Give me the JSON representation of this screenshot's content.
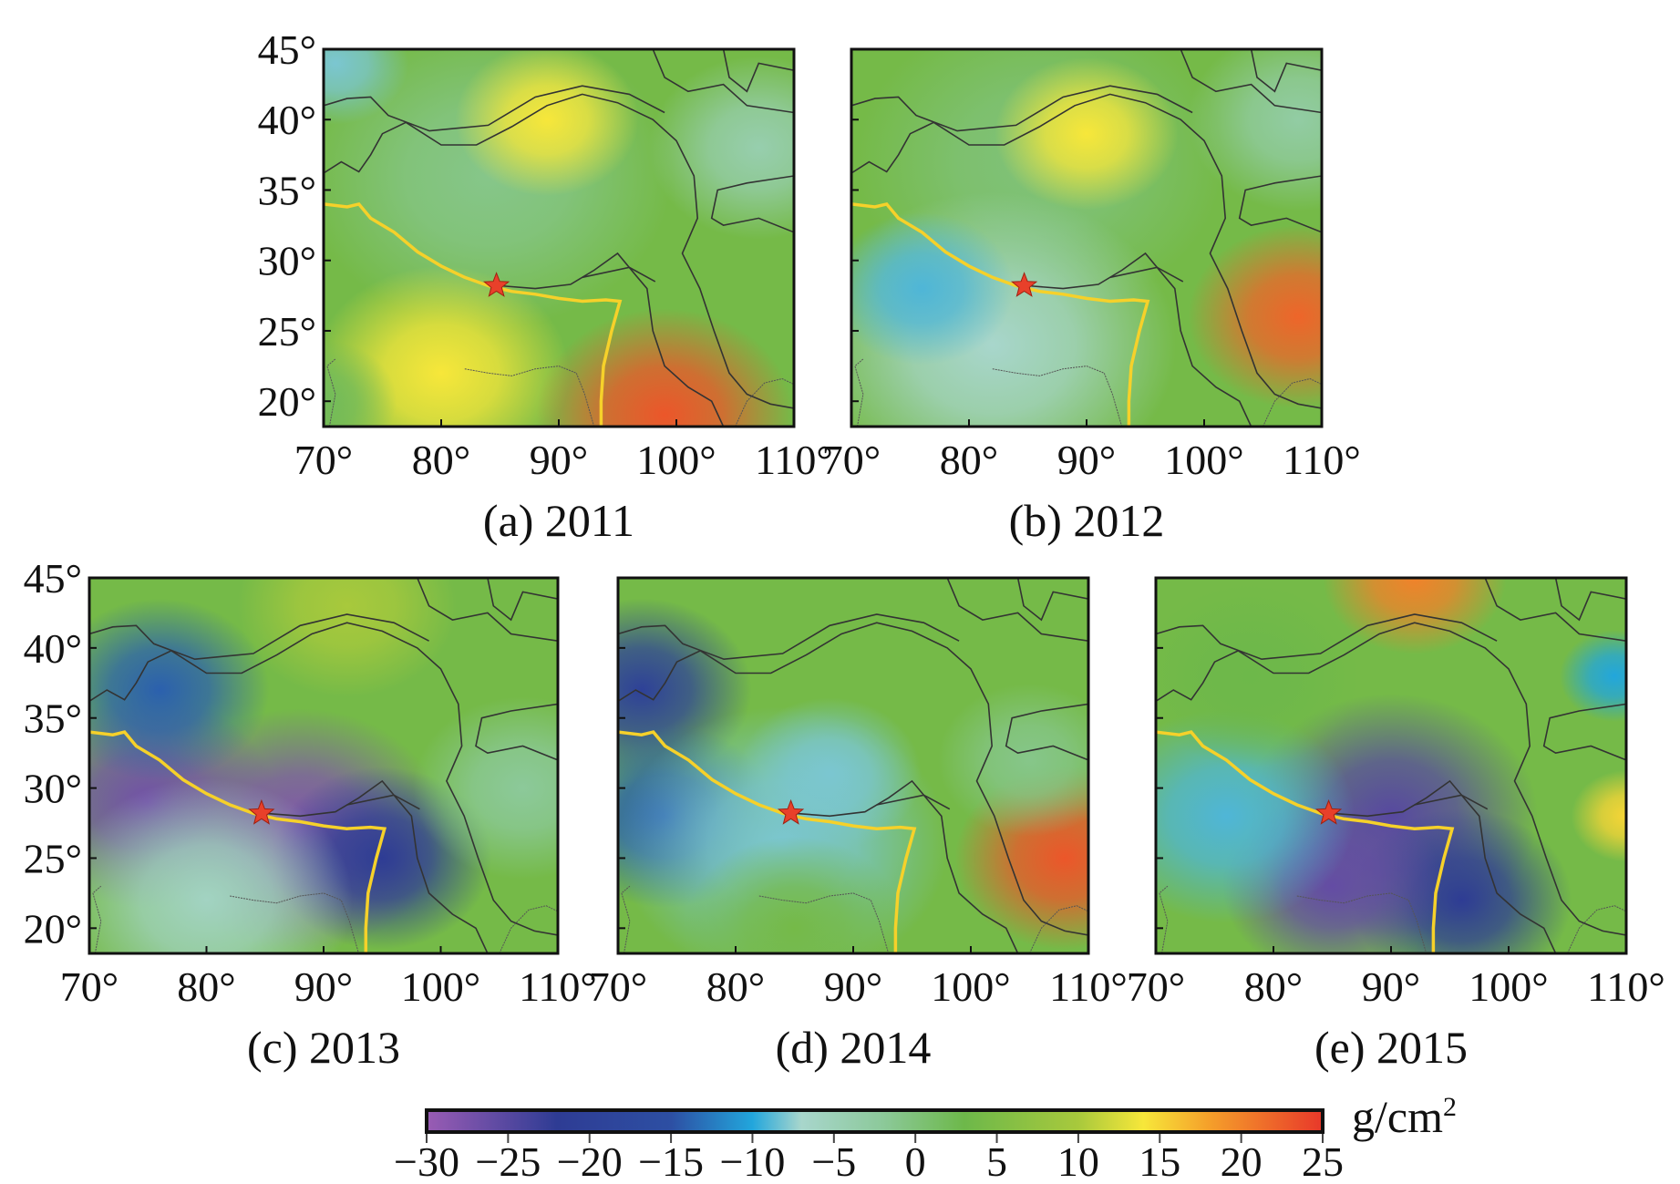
{
  "chart_data": {
    "type": "heatmap",
    "unit": "g/cm²",
    "unit_base": "g/cm",
    "unit_sup": "2",
    "lon_ticks": [
      "70°",
      "80°",
      "90°",
      "100°",
      "110°"
    ],
    "lon_values": [
      70,
      80,
      90,
      100,
      110
    ],
    "lat_ticks": [
      "45°",
      "40°",
      "35°",
      "30°",
      "25°",
      "20°"
    ],
    "lat_values": [
      45,
      40,
      35,
      30,
      25,
      20
    ],
    "lon_range": [
      70,
      110
    ],
    "lat_range": [
      18.2,
      45
    ],
    "colorbar": {
      "range": [
        -30,
        25
      ],
      "ticks": [
        "−30",
        "−25",
        "−20",
        "−15",
        "−10",
        "−5",
        "0",
        "5",
        "10",
        "15",
        "20",
        "25"
      ],
      "stops": [
        {
          "v": -30,
          "c": "#9a5cb4"
        },
        {
          "v": -22,
          "c": "#2e3c94"
        },
        {
          "v": -15,
          "c": "#2d4fa3"
        },
        {
          "v": -10,
          "c": "#22a6dc"
        },
        {
          "v": -7,
          "c": "#a8d6cc"
        },
        {
          "v": -2,
          "c": "#8cc99a"
        },
        {
          "v": 3,
          "c": "#6db84a"
        },
        {
          "v": 10,
          "c": "#a8c93c"
        },
        {
          "v": 14,
          "c": "#f7e73a"
        },
        {
          "v": 18,
          "c": "#f5a02a"
        },
        {
          "v": 25,
          "c": "#e8382a"
        }
      ]
    },
    "epicenter": {
      "lon": 84.7,
      "lat": 28.2,
      "color": "#e8402a"
    },
    "panels": [
      {
        "label": "(a) 2011",
        "base": 4,
        "anomalies": [
          {
            "lon": 84,
            "lat": 36,
            "v": -1,
            "r": 10
          },
          {
            "lon": 89,
            "lat": 40,
            "v": 14,
            "r": 5
          },
          {
            "lon": 80,
            "lat": 22,
            "v": 14,
            "r": 7
          },
          {
            "lon": 99,
            "lat": 19,
            "v": 23,
            "r": 7
          },
          {
            "lon": 71,
            "lat": 44,
            "v": -8,
            "r": 4
          },
          {
            "lon": 107,
            "lat": 38,
            "v": -4,
            "r": 6
          },
          {
            "lon": 70,
            "lat": 20,
            "v": 2,
            "r": 4
          }
        ]
      },
      {
        "label": "(b) 2012",
        "base": 4,
        "anomalies": [
          {
            "lon": 86,
            "lat": 37,
            "v": 0,
            "r": 10
          },
          {
            "lon": 90,
            "lat": 39,
            "v": 14,
            "r": 5
          },
          {
            "lon": 82,
            "lat": 24,
            "v": -7,
            "r": 10
          },
          {
            "lon": 76,
            "lat": 28,
            "v": -9,
            "r": 5
          },
          {
            "lon": 108,
            "lat": 26,
            "v": 22,
            "r": 6
          },
          {
            "lon": 108,
            "lat": 40,
            "v": -3,
            "r": 6
          }
        ]
      },
      {
        "label": "(c) 2013",
        "base": 4,
        "anomalies": [
          {
            "lon": 75,
            "lat": 29,
            "v": -27,
            "r": 7
          },
          {
            "lon": 88,
            "lat": 27,
            "v": -28,
            "r": 8
          },
          {
            "lon": 95,
            "lat": 25,
            "v": -22,
            "r": 6
          },
          {
            "lon": 76,
            "lat": 37,
            "v": -14,
            "r": 6
          },
          {
            "lon": 80,
            "lat": 22,
            "v": -6,
            "r": 8
          },
          {
            "lon": 92,
            "lat": 43,
            "v": 10,
            "r": 6
          },
          {
            "lon": 107,
            "lat": 30,
            "v": -2,
            "r": 6
          }
        ]
      },
      {
        "label": "(d) 2014",
        "base": 4,
        "anomalies": [
          {
            "lon": 72,
            "lat": 37,
            "v": -20,
            "r": 6
          },
          {
            "lon": 74,
            "lat": 28,
            "v": -14,
            "r": 6
          },
          {
            "lon": 84,
            "lat": 26,
            "v": -8,
            "r": 9
          },
          {
            "lon": 88,
            "lat": 31,
            "v": -8,
            "r": 5
          },
          {
            "lon": 108,
            "lat": 25,
            "v": 23,
            "r": 6
          },
          {
            "lon": 105,
            "lat": 32,
            "v": -1,
            "r": 5
          },
          {
            "lon": 85,
            "lat": 20,
            "v": 4,
            "r": 6
          }
        ]
      },
      {
        "label": "(e) 2015",
        "base": 4,
        "anomalies": [
          {
            "lon": 90,
            "lat": 28,
            "v": -25,
            "r": 8
          },
          {
            "lon": 96,
            "lat": 22,
            "v": -22,
            "r": 6
          },
          {
            "lon": 85,
            "lat": 23,
            "v": -26,
            "r": 6
          },
          {
            "lon": 76,
            "lat": 28,
            "v": -9,
            "r": 7
          },
          {
            "lon": 92,
            "lat": 45,
            "v": 20,
            "r": 5
          },
          {
            "lon": 109,
            "lat": 38,
            "v": -10,
            "r": 3
          },
          {
            "lon": 110,
            "lat": 28,
            "v": 15,
            "r": 3
          },
          {
            "lon": 78,
            "lat": 38,
            "v": 3,
            "r": 6
          }
        ]
      }
    ]
  }
}
